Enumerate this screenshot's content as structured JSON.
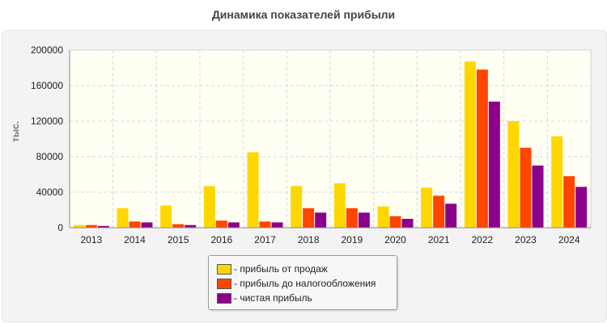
{
  "chart_data": {
    "type": "bar",
    "title": "Динамика показателей прибыли",
    "ylabel": "тыс.",
    "xlabel": "",
    "ylim": [
      0,
      200000
    ],
    "yticks": [
      0,
      40000,
      80000,
      120000,
      160000,
      200000
    ],
    "grid": true,
    "legend_position": "bottom",
    "categories": [
      "2013",
      "2014",
      "2015",
      "2016",
      "2017",
      "2018",
      "2019",
      "2020",
      "2021",
      "2022",
      "2023",
      "2024"
    ],
    "series": [
      {
        "name": "- прибыль от продаж",
        "color": "#FFD700",
        "values": [
          3000,
          22000,
          25000,
          47000,
          85000,
          47000,
          50000,
          24000,
          45000,
          187000,
          120000,
          103000
        ]
      },
      {
        "name": "- прибыль до налогообложения",
        "color": "#FF4500",
        "values": [
          3000,
          7000,
          4000,
          8000,
          7000,
          22000,
          22000,
          13000,
          36000,
          178000,
          90000,
          58000
        ]
      },
      {
        "name": "- чистая прибыль",
        "color": "#8B008B",
        "values": [
          2000,
          6000,
          3000,
          6000,
          6000,
          17000,
          17000,
          10000,
          27000,
          142000,
          70000,
          46000
        ]
      }
    ]
  }
}
